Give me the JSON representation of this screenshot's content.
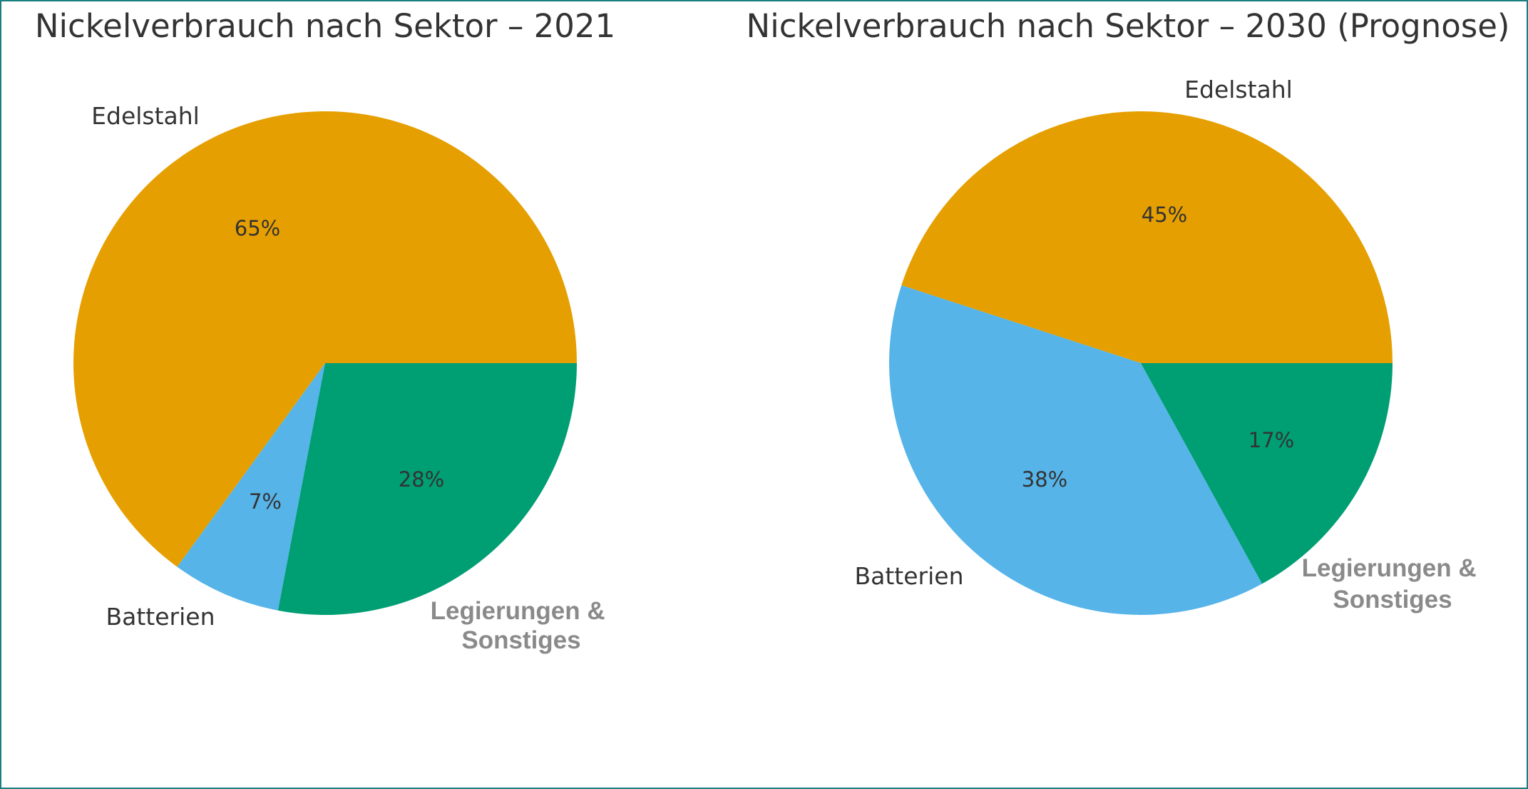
{
  "chart_data": [
    {
      "type": "pie",
      "title": "Nickelverbrauch nach Sektor – 2021",
      "categories": [
        "Edelstahl",
        "Batterien",
        "Legierungen & Sonstiges"
      ],
      "values": [
        65,
        7,
        28
      ],
      "value_labels": [
        "65%",
        "7%",
        "28%"
      ],
      "colors": [
        "#E69F00",
        "#56B4E9",
        "#009E73"
      ]
    },
    {
      "type": "pie",
      "title": "Nickelverbrauch nach Sektor – 2030 (Prognose)",
      "categories": [
        "Edelstahl",
        "Batterien",
        "Legierungen & Sonstiges"
      ],
      "values": [
        45,
        38,
        17
      ],
      "value_labels": [
        "45%",
        "38%",
        "17%"
      ],
      "colors": [
        "#E69F00",
        "#56B4E9",
        "#009E73"
      ]
    }
  ]
}
